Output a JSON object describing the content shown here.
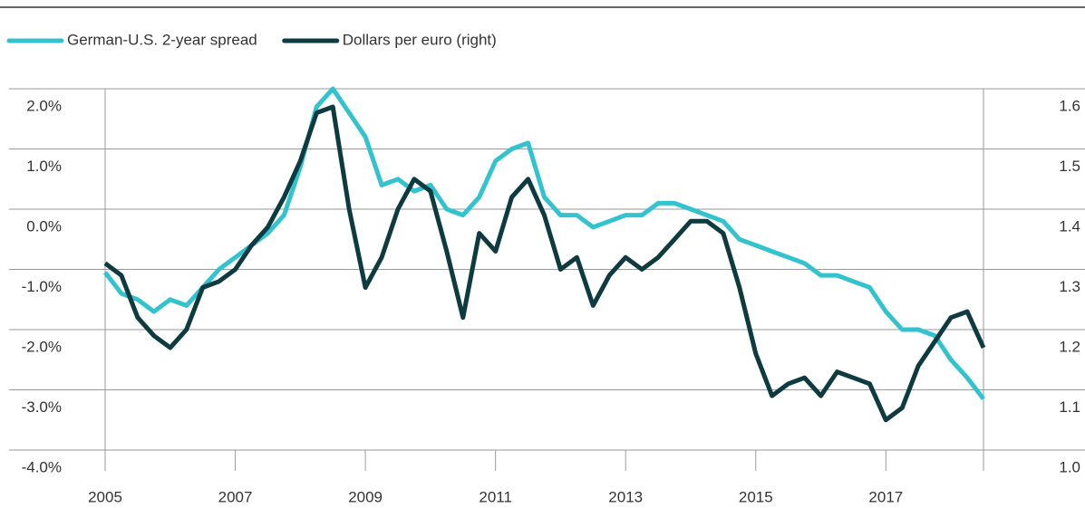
{
  "chart_data": {
    "type": "line",
    "x": [
      2005,
      2005.25,
      2005.5,
      2005.75,
      2006,
      2006.25,
      2006.5,
      2006.75,
      2007,
      2007.25,
      2007.5,
      2007.75,
      2008,
      2008.25,
      2008.5,
      2008.75,
      2009,
      2009.25,
      2009.5,
      2009.75,
      2010,
      2010.25,
      2010.5,
      2010.75,
      2011,
      2011.25,
      2011.5,
      2011.75,
      2012,
      2012.25,
      2012.5,
      2012.75,
      2013,
      2013.25,
      2013.5,
      2013.75,
      2014,
      2014.25,
      2014.5,
      2014.75,
      2015,
      2015.25,
      2015.5,
      2015.75,
      2016,
      2016.25,
      2016.5,
      2016.75,
      2017,
      2017.25,
      2017.5,
      2017.75,
      2018,
      2018.25,
      2018.5
    ],
    "series": [
      {
        "name": "German-U.S. 2-year spread",
        "color": "#33c3cf",
        "values": [
          -1.05,
          -1.4,
          -1.5,
          -1.7,
          -1.5,
          -1.6,
          -1.3,
          -1.0,
          -0.8,
          -0.6,
          -0.4,
          -0.1,
          0.7,
          1.7,
          2.0,
          1.6,
          1.2,
          0.4,
          0.5,
          0.3,
          0.4,
          0.0,
          -0.1,
          0.2,
          0.8,
          1.0,
          1.1,
          0.2,
          -0.1,
          -0.1,
          -0.3,
          -0.2,
          -0.1,
          -0.1,
          0.1,
          0.1,
          0.0,
          -0.1,
          -0.2,
          -0.5,
          -0.6,
          -0.7,
          -0.8,
          -0.9,
          -1.1,
          -1.1,
          -1.2,
          -1.3,
          -1.7,
          -2.0,
          -2.0,
          -2.1,
          -2.5,
          -2.8,
          -3.15
        ]
      },
      {
        "name": "Dollars per euro (right)",
        "color": "#0d3b40",
        "axis": "y2",
        "values": [
          1.31,
          1.29,
          1.22,
          1.19,
          1.17,
          1.2,
          1.27,
          1.28,
          1.3,
          1.34,
          1.37,
          1.42,
          1.48,
          1.56,
          1.57,
          1.4,
          1.27,
          1.32,
          1.4,
          1.45,
          1.43,
          1.33,
          1.22,
          1.36,
          1.33,
          1.42,
          1.45,
          1.39,
          1.3,
          1.32,
          1.24,
          1.29,
          1.32,
          1.3,
          1.32,
          1.35,
          1.38,
          1.38,
          1.36,
          1.27,
          1.16,
          1.09,
          1.11,
          1.12,
          1.09,
          1.13,
          1.12,
          1.11,
          1.05,
          1.07,
          1.14,
          1.18,
          1.22,
          1.23,
          1.17
        ]
      }
    ],
    "xlim": [
      2005,
      2018.5
    ],
    "xticks": [
      2005,
      2007,
      2009,
      2011,
      2013,
      2015,
      2017
    ],
    "ylim": [
      -4,
      2
    ],
    "yticks": [
      {
        "value": 2,
        "label": "2.0%"
      },
      {
        "value": 1,
        "label": "1.0%"
      },
      {
        "value": 0,
        "label": "0.0%"
      },
      {
        "value": -1,
        "label": "-1.0%"
      },
      {
        "value": -2,
        "label": "-2.0%"
      },
      {
        "value": -3,
        "label": "-3.0%"
      },
      {
        "value": -4,
        "label": "-4.0%"
      }
    ],
    "y2lim": [
      1.0,
      1.6
    ],
    "y2ticks": [
      1.6,
      1.5,
      1.4,
      1.3,
      1.2,
      1.1,
      {
        "value": 1,
        "label": "1.0"
      }
    ],
    "grid": true,
    "legend": "top"
  }
}
